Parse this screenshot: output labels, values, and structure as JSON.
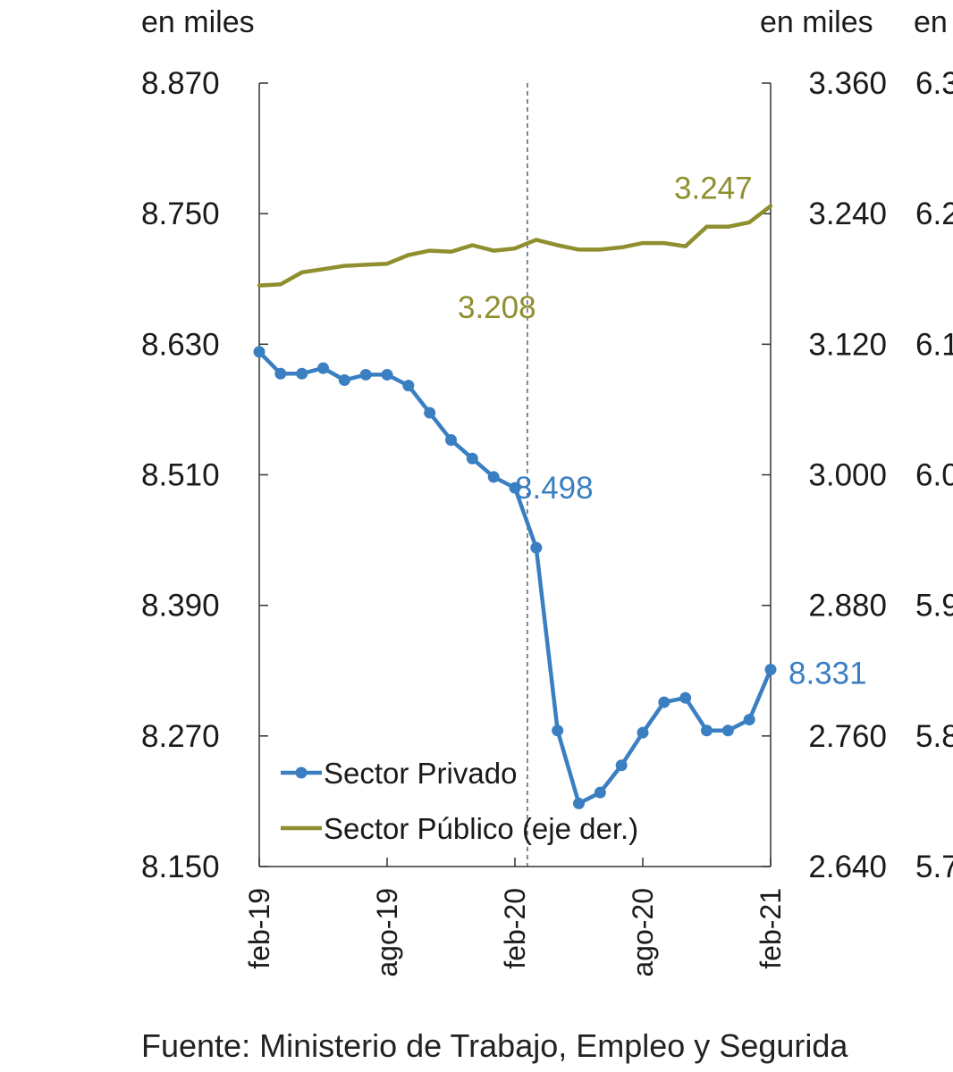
{
  "chart_data": {
    "type": "line",
    "x": [
      "feb-19",
      "mar-19",
      "abr-19",
      "may-19",
      "jun-19",
      "jul-19",
      "ago-19",
      "sep-19",
      "oct-19",
      "nov-19",
      "dic-19",
      "ene-20",
      "feb-20",
      "mar-20",
      "abr-20",
      "may-20",
      "jun-20",
      "jul-20",
      "ago-20",
      "sep-20",
      "oct-20",
      "nov-20",
      "dic-20",
      "ene-21",
      "feb-21"
    ],
    "x_tick_labels": [
      "feb-19",
      "ago-19",
      "feb-20",
      "ago-20",
      "feb-21"
    ],
    "y_left": {
      "unit": "en miles",
      "ticks": [
        "8.870",
        "8.750",
        "8.630",
        "8.510",
        "8.390",
        "8.270",
        "8.150"
      ],
      "range": [
        8150,
        8870
      ]
    },
    "y_right": {
      "unit": "en miles",
      "ticks": [
        "3.360",
        "3.240",
        "3.120",
        "3.000",
        "2.880",
        "2.760",
        "2.640"
      ],
      "range": [
        2640,
        3360
      ]
    },
    "y_right2": {
      "unit": "en",
      "ticks": [
        "6.3",
        "6.2",
        "6.1",
        "6.0",
        "5.9",
        "5.8",
        "5.7"
      ]
    },
    "series": [
      {
        "name": "Sector Privado",
        "axis": "left",
        "color": "#3a7fc1",
        "marker": "circle",
        "values": [
          8623,
          8603,
          8603,
          8608,
          8597,
          8602,
          8602,
          8592,
          8567,
          8542,
          8525,
          8508,
          8498,
          8443,
          8275,
          8208,
          8218,
          8243,
          8273,
          8301,
          8305,
          8275,
          8275,
          8285,
          8331
        ]
      },
      {
        "name": "Sector Público (eje der.)",
        "axis": "right",
        "color": "#8f8f2f",
        "marker": "none",
        "values": [
          3174,
          3175,
          3186,
          3189,
          3192,
          3193,
          3194,
          3202,
          3206,
          3205,
          3211,
          3206,
          3208,
          3216,
          3211,
          3207,
          3207,
          3209,
          3213,
          3213,
          3210,
          3228,
          3228,
          3232,
          3247
        ]
      }
    ],
    "annotations": [
      {
        "text": "3.208",
        "series": "Sector Público (eje der.)",
        "x": "feb-20",
        "value": 3208
      },
      {
        "text": "3.247",
        "series": "Sector Público (eje der.)",
        "x": "feb-21",
        "value": 3247
      },
      {
        "text": "8.498",
        "series": "Sector Privado",
        "x": "feb-20",
        "value": 8498
      },
      {
        "text": "8.331",
        "series": "Sector Privado",
        "x": "feb-21",
        "value": 8331
      }
    ],
    "reference_line": {
      "style": "dashed",
      "x": "mar-20"
    },
    "legend": "bottom-left",
    "grid": false
  },
  "source": "Fuente: Ministerio de Trabajo, Empleo y Segurida"
}
